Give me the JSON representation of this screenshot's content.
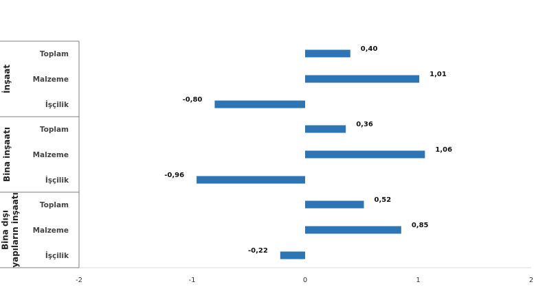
{
  "chart_data": {
    "type": "bar",
    "orientation": "horizontal",
    "xlim": [
      -2,
      2
    ],
    "x_ticks": [
      "-2",
      "-1",
      "0",
      "1",
      "2"
    ],
    "x_tick_values": [
      -2,
      -1,
      0,
      1,
      2
    ],
    "groups": [
      {
        "label": "İnşaat",
        "categories": [
          {
            "label": "Toplam",
            "value": 0.4,
            "value_label": "0,40"
          },
          {
            "label": "Malzeme",
            "value": 1.01,
            "value_label": "1,01"
          },
          {
            "label": "İşçilik",
            "value": -0.8,
            "value_label": "-0,80"
          }
        ]
      },
      {
        "label": "Bina inşaatı",
        "categories": [
          {
            "label": "Toplam",
            "value": 0.36,
            "value_label": "0,36"
          },
          {
            "label": "Malzeme",
            "value": 1.06,
            "value_label": "1,06"
          },
          {
            "label": "İşçilik",
            "value": -0.96,
            "value_label": "-0,96"
          }
        ]
      },
      {
        "label": "Bina dışı yapıların inşaatı",
        "label_lines": [
          "Bina dışı",
          "yapıların inşaatı"
        ],
        "categories": [
          {
            "label": "Toplam",
            "value": 0.52,
            "value_label": "0,52"
          },
          {
            "label": "Malzeme",
            "value": 0.85,
            "value_label": "0,85"
          },
          {
            "label": "İşçilik",
            "value": -0.22,
            "value_label": "-0,22"
          }
        ]
      }
    ],
    "bar_color": "#2e75b6",
    "grid": false,
    "legend": "none"
  }
}
